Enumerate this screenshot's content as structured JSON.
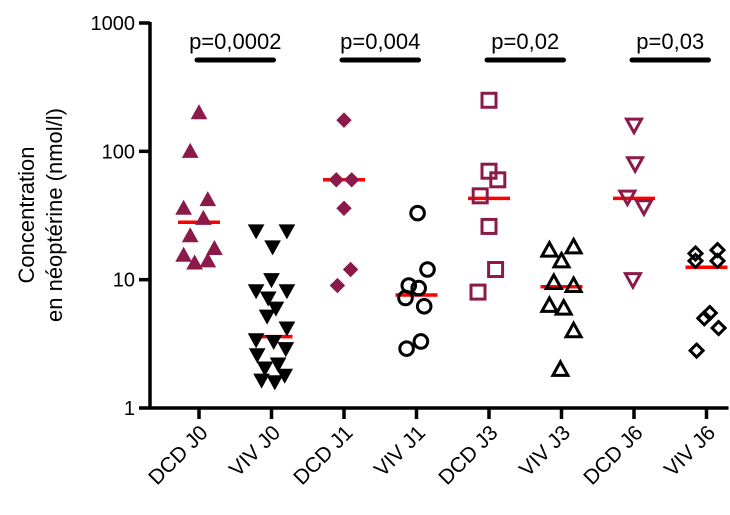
{
  "chart_data": {
    "type": "scatter",
    "title": "",
    "ylabel_lines": [
      "Concentration",
      "en néoptérine (nmol/l)"
    ],
    "yscale": "log",
    "ylim": [
      1,
      1000
    ],
    "yticks": [
      1,
      10,
      100,
      1000
    ],
    "ytick_labels": [
      "1",
      "10",
      "100",
      "1000"
    ],
    "categories": [
      "DCD J0",
      "VIV J0",
      "DCD J1",
      "VIV J1",
      "DCD J3",
      "VIV J3",
      "DCD J6",
      "VIV J6"
    ],
    "series": [
      {
        "category": "DCD J0",
        "marker": "triangle-up-filled",
        "color": "#8b1a4a",
        "median": 28,
        "points": [
          {
            "dx": 0,
            "y": 200
          },
          {
            "dx": -0.4,
            "y": 100
          },
          {
            "dx": 0.4,
            "y": 42
          },
          {
            "dx": -0.7,
            "y": 36
          },
          {
            "dx": 0.2,
            "y": 30
          },
          {
            "dx": -0.4,
            "y": 22
          },
          {
            "dx": 0.7,
            "y": 17.5
          },
          {
            "dx": -0.7,
            "y": 15.5
          },
          {
            "dx": 0.4,
            "y": 14
          },
          {
            "dx": -0.2,
            "y": 13.5
          }
        ]
      },
      {
        "category": "VIV J0",
        "marker": "triangle-down-filled",
        "color": "#000000",
        "median": 3.6,
        "points": [
          {
            "dx": -0.7,
            "y": 24
          },
          {
            "dx": 0.7,
            "y": 24
          },
          {
            "dx": 0.05,
            "y": 18
          },
          {
            "dx": 0,
            "y": 10
          },
          {
            "dx": -0.7,
            "y": 8.2
          },
          {
            "dx": 0.7,
            "y": 8.2
          },
          {
            "dx": -0.15,
            "y": 7.2
          },
          {
            "dx": 0.2,
            "y": 6
          },
          {
            "dx": -0.2,
            "y": 5.2
          },
          {
            "dx": 0.7,
            "y": 4.2
          },
          {
            "dx": -0.7,
            "y": 3.4
          },
          {
            "dx": 0.1,
            "y": 3.3
          },
          {
            "dx": 0.65,
            "y": 2.9
          },
          {
            "dx": -0.65,
            "y": 2.6
          },
          {
            "dx": 0.3,
            "y": 2.2
          },
          {
            "dx": -0.3,
            "y": 2.05
          },
          {
            "dx": 0.6,
            "y": 1.8
          },
          {
            "dx": -0.45,
            "y": 1.65
          },
          {
            "dx": 0.15,
            "y": 1.6
          }
        ]
      },
      {
        "category": "DCD J1",
        "marker": "diamond-filled",
        "color": "#8b1a4a",
        "median": 60,
        "points": [
          {
            "dx": 0,
            "y": 175
          },
          {
            "dx": -0.35,
            "y": 60
          },
          {
            "dx": 0.35,
            "y": 60
          },
          {
            "dx": 0,
            "y": 36
          },
          {
            "dx": 0.3,
            "y": 12
          },
          {
            "dx": -0.3,
            "y": 9
          }
        ]
      },
      {
        "category": "VIV J1",
        "marker": "circle-open",
        "color": "#000000",
        "median": 7.6,
        "points": [
          {
            "dx": 0.05,
            "y": 33
          },
          {
            "dx": 0.5,
            "y": 12
          },
          {
            "dx": -0.35,
            "y": 9
          },
          {
            "dx": 0.1,
            "y": 8.6
          },
          {
            "dx": -0.5,
            "y": 7.2
          },
          {
            "dx": 0.35,
            "y": 6.2
          },
          {
            "dx": 0.2,
            "y": 3.3
          },
          {
            "dx": -0.45,
            "y": 2.9
          }
        ]
      },
      {
        "category": "DCD J3",
        "marker": "square-open",
        "color": "#8b1a4a",
        "median": 43,
        "points": [
          {
            "dx": 0,
            "y": 250
          },
          {
            "dx": 0,
            "y": 70
          },
          {
            "dx": 0.4,
            "y": 60
          },
          {
            "dx": -0.4,
            "y": 45
          },
          {
            "dx": 0,
            "y": 26
          },
          {
            "dx": 0.3,
            "y": 12
          },
          {
            "dx": -0.5,
            "y": 8
          }
        ]
      },
      {
        "category": "VIV J3",
        "marker": "triangle-up-open",
        "color": "#000000",
        "median": 8.8,
        "points": [
          {
            "dx": -0.55,
            "y": 17
          },
          {
            "dx": 0.55,
            "y": 18
          },
          {
            "dx": 0,
            "y": 14
          },
          {
            "dx": -0.35,
            "y": 9.5
          },
          {
            "dx": 0.55,
            "y": 9
          },
          {
            "dx": -0.55,
            "y": 6.3
          },
          {
            "dx": 0.1,
            "y": 6
          },
          {
            "dx": 0.55,
            "y": 4
          },
          {
            "dx": -0.05,
            "y": 2
          }
        ]
      },
      {
        "category": "DCD J6",
        "marker": "triangle-down-open",
        "color": "#8b1a4a",
        "median": 43,
        "points": [
          {
            "dx": 0,
            "y": 160
          },
          {
            "dx": 0.05,
            "y": 80
          },
          {
            "dx": -0.3,
            "y": 44
          },
          {
            "dx": 0.45,
            "y": 37
          },
          {
            "dx": -0.05,
            "y": 10
          }
        ]
      },
      {
        "category": "VIV J6",
        "marker": "diamond-open",
        "color": "#000000",
        "median": 12.5,
        "points": [
          {
            "dx": -0.5,
            "y": 16
          },
          {
            "dx": 0.5,
            "y": 17
          },
          {
            "dx": -0.5,
            "y": 14
          },
          {
            "dx": 0.5,
            "y": 14
          },
          {
            "dx": 0.15,
            "y": 5.5
          },
          {
            "dx": -0.1,
            "y": 5
          },
          {
            "dx": 0.55,
            "y": 4.2
          },
          {
            "dx": -0.45,
            "y": 2.8
          }
        ]
      }
    ],
    "median_color": "#ff0000",
    "annotations": [
      {
        "text": "p=0,0002",
        "groups": [
          0,
          1
        ]
      },
      {
        "text": "p=0,004",
        "groups": [
          2,
          3
        ]
      },
      {
        "text": "p=0,02",
        "groups": [
          4,
          5
        ]
      },
      {
        "text": "p=0,03",
        "groups": [
          6,
          7
        ]
      }
    ]
  }
}
